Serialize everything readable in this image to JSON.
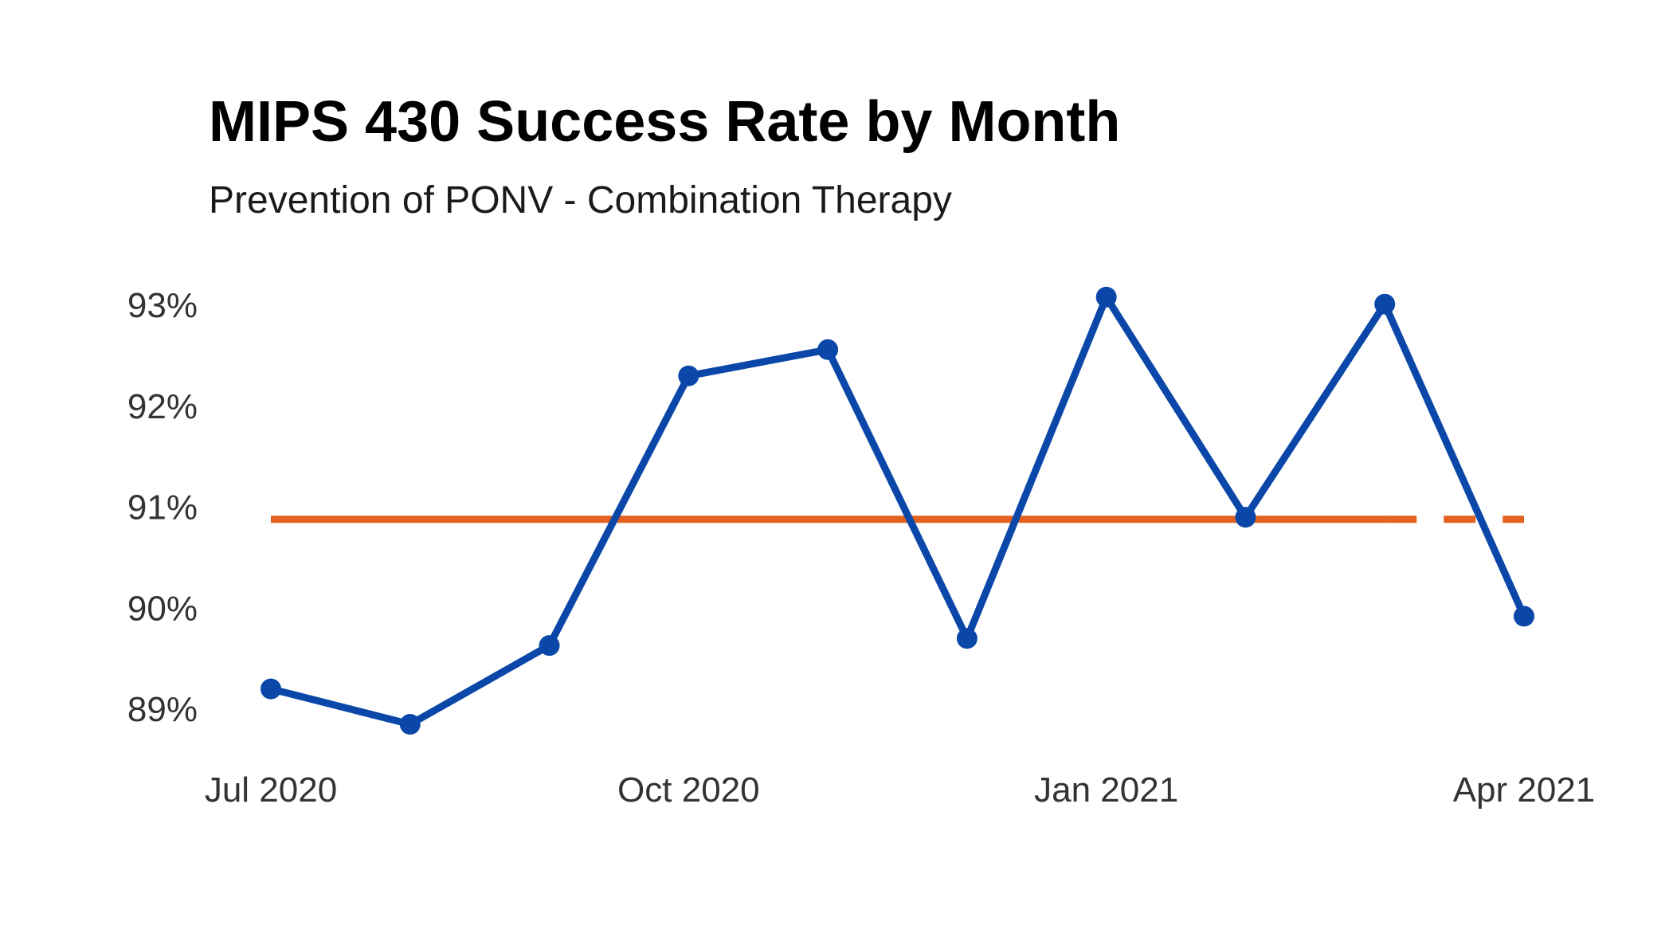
{
  "chart_data": {
    "type": "line",
    "title": "MIPS 430 Success Rate by Month",
    "subtitle": "Prevention of PONV - Combination Therapy",
    "xlabel": "",
    "ylabel": "",
    "x": [
      "2020-07",
      "2020-08",
      "2020-09",
      "2020-10",
      "2020-11",
      "2020-12",
      "2021-01",
      "2021-02",
      "2021-03",
      "2021-04"
    ],
    "x_tick_labels": [
      "Jul 2020",
      "Oct 2020",
      "Jan 2021",
      "Apr 2021"
    ],
    "y_ticks": [
      89,
      90,
      91,
      92,
      93
    ],
    "y_tick_labels": [
      "89%",
      "90%",
      "91%",
      "92%",
      "93%"
    ],
    "ylim": [
      88.7,
      93.3
    ],
    "grid": false,
    "legend": "none",
    "series": [
      {
        "values": [
          89.2,
          88.85,
          89.63,
          92.3,
          92.56,
          89.7,
          93.08,
          90.9,
          93.01,
          89.92
        ],
        "color": "#0a47a9",
        "style": "line-with-markers"
      }
    ],
    "reference_line": {
      "value": 90.88,
      "color": "#e2621f",
      "style": "solid-then-dashed",
      "solid_until": "2021-03"
    }
  }
}
